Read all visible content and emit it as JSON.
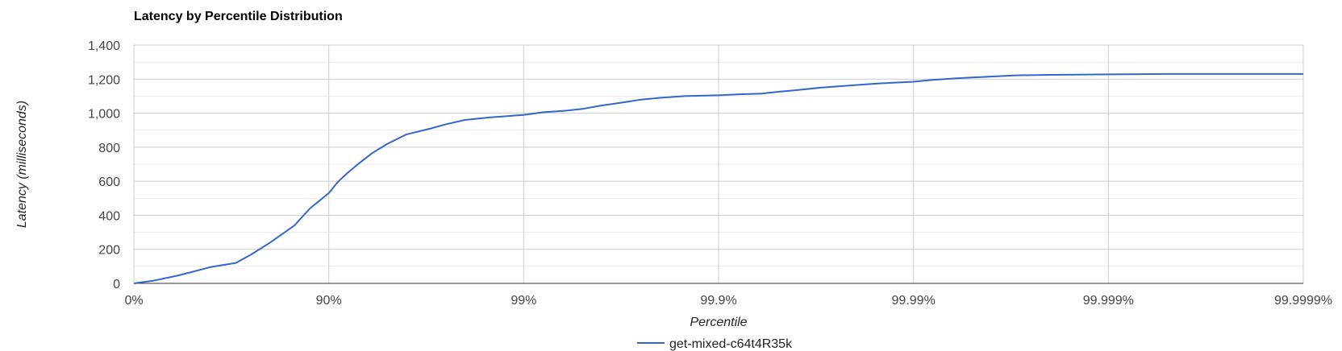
{
  "chart_data": {
    "type": "line",
    "title": "Latency by Percentile Distribution",
    "xlabel": "Percentile",
    "ylabel": "Latency (milliseconds)",
    "x_scale": "log-percentile",
    "x_ticks": [
      "0%",
      "90%",
      "99%",
      "99.9%",
      "99.99%",
      "99.999%",
      "99.9999%"
    ],
    "y_ticks": [
      "0",
      "200",
      "400",
      "600",
      "800",
      "1,000",
      "1,200",
      "1,400"
    ],
    "ylim": [
      0,
      1400
    ],
    "grid": true,
    "legend_position": "bottom",
    "colors": {
      "series": "#3366cc",
      "grid_major": "#cccccc",
      "grid_minor": "#ebebeb",
      "baseline": "#333333"
    },
    "series": [
      {
        "name": "get-mixed-c64t4R35k",
        "x": [
          0,
          20,
          40,
          50,
          60,
          70,
          75,
          80,
          85,
          87.5,
          90,
          91,
          92,
          93,
          94,
          95,
          96,
          97,
          97.5,
          98,
          98.5,
          99,
          99.2,
          99.4,
          99.5,
          99.6,
          99.7,
          99.75,
          99.8,
          99.85,
          99.9,
          99.92,
          99.94,
          99.95,
          99.96,
          99.97,
          99.98,
          99.985,
          99.99,
          99.992,
          99.994,
          99.995,
          99.996,
          99.997,
          99.998,
          99.999,
          99.9995,
          99.9999
        ],
        "y": [
          0,
          15,
          45,
          68,
          97,
          120,
          170,
          240,
          340,
          440,
          530,
          595,
          650,
          705,
          765,
          820,
          875,
          910,
          935,
          960,
          975,
          990,
          1005,
          1015,
          1025,
          1045,
          1065,
          1080,
          1090,
          1100,
          1105,
          1110,
          1115,
          1125,
          1135,
          1150,
          1165,
          1175,
          1185,
          1195,
          1205,
          1210,
          1215,
          1222,
          1225,
          1228,
          1230,
          1230
        ]
      }
    ]
  }
}
